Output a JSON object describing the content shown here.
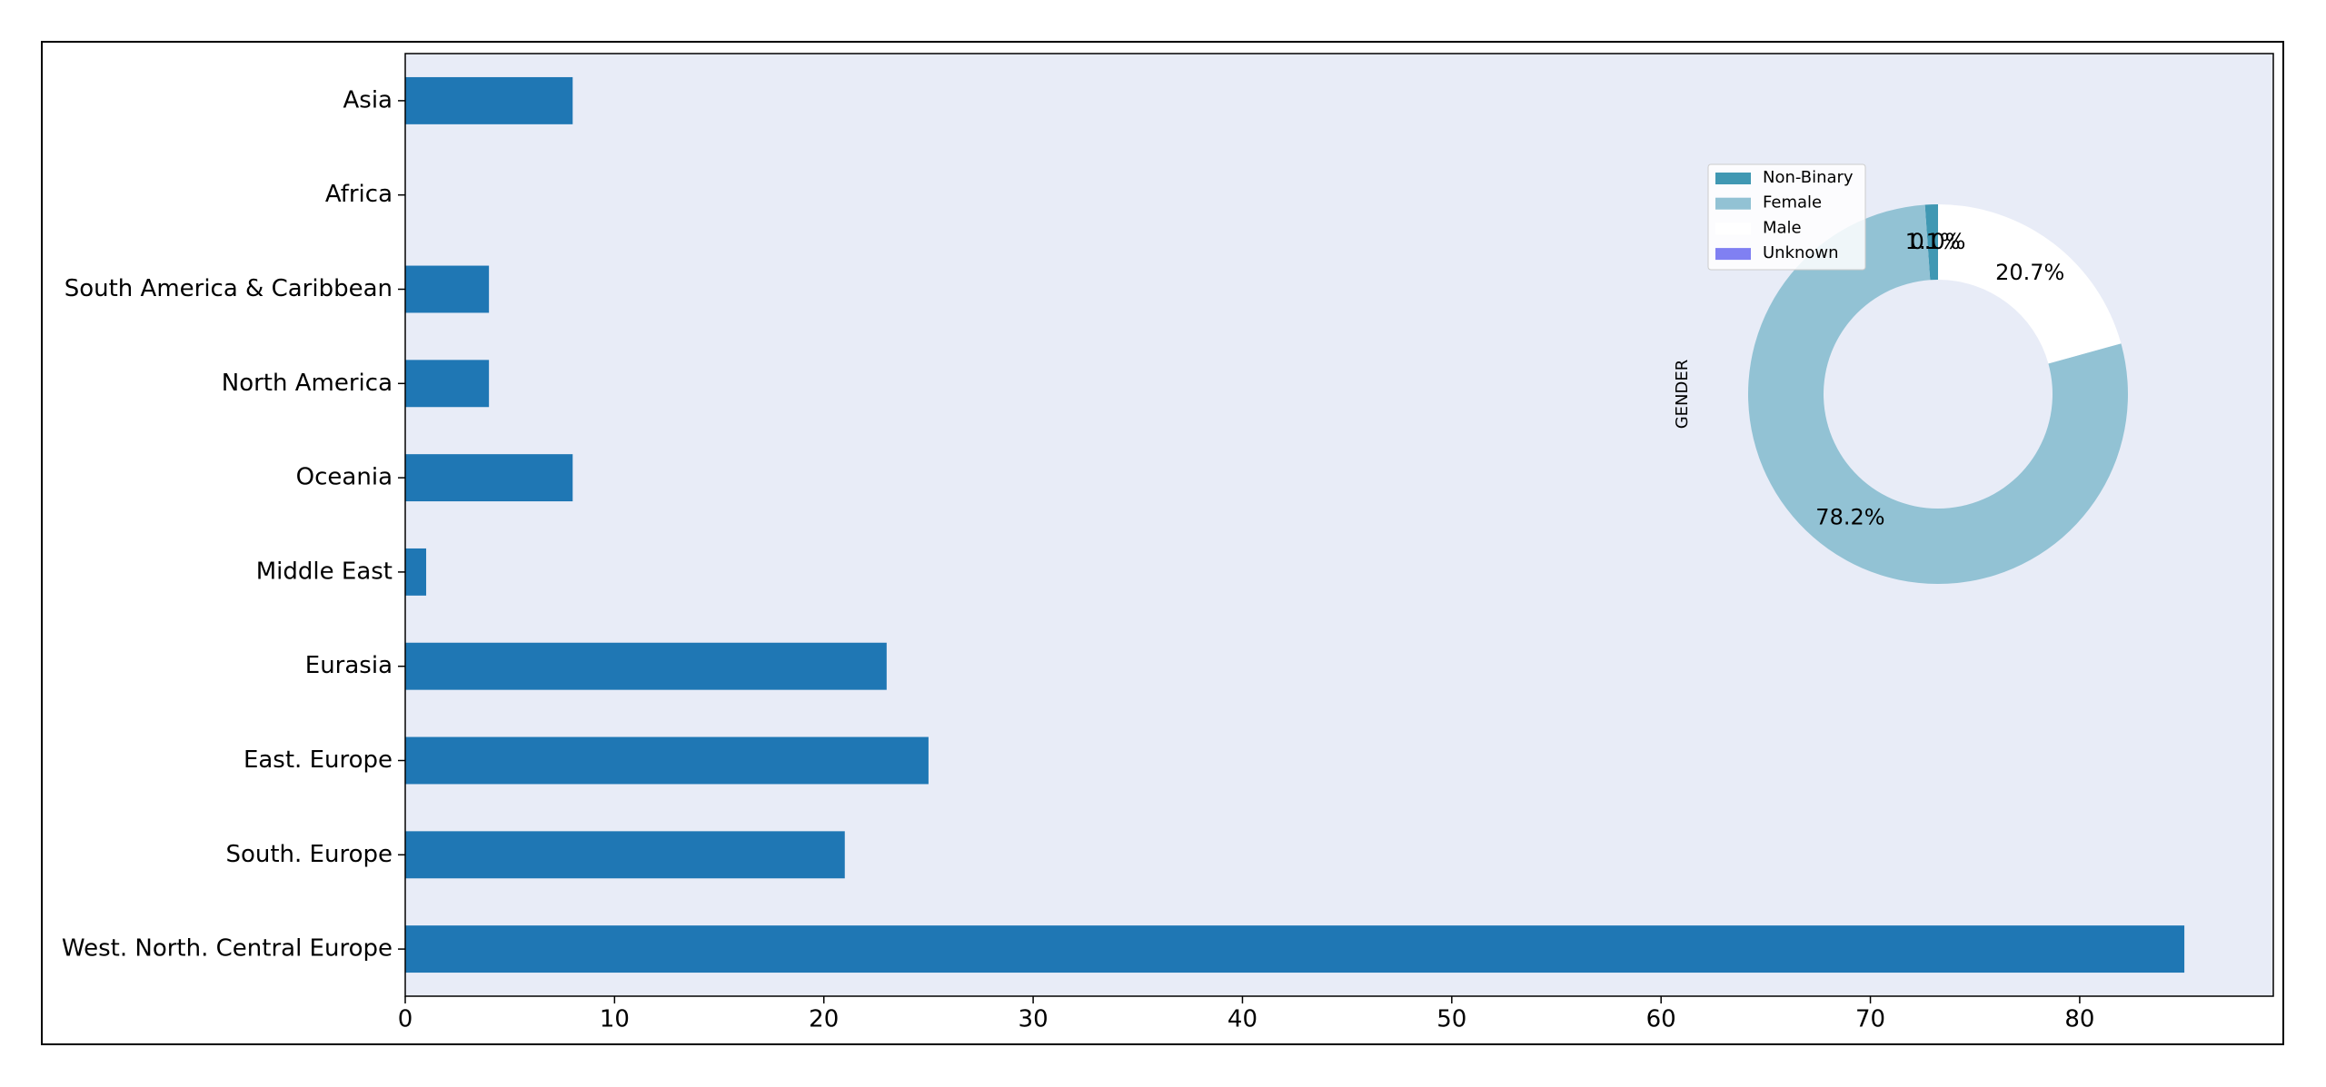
{
  "chart_data": [
    {
      "type": "barh",
      "categories": [
        "Asia",
        "Africa",
        "South America & Caribbean",
        "North America",
        "Oceania",
        "Middle East",
        "Eurasia",
        "East. Europe",
        "South. Europe",
        "West. North. Central Europe"
      ],
      "values": [
        8,
        0,
        4,
        4,
        8,
        1,
        23,
        25,
        21,
        85
      ],
      "color": "#1f77b4",
      "xlim": [
        0,
        89.25
      ],
      "xticks": [
        0,
        10,
        20,
        30,
        40,
        50,
        60,
        70,
        80
      ]
    },
    {
      "type": "pie",
      "ylabel": "GENDER",
      "series": [
        {
          "name": "Non-Binary",
          "color": "#4098b3",
          "value": 1.1,
          "value_label": "1.1%"
        },
        {
          "name": "Female",
          "color": "#92c2d4",
          "value": 78.2,
          "value_label": "78.2%"
        },
        {
          "name": "Male",
          "color": "#ffffff",
          "value": 20.7,
          "value_label": "20.7%"
        },
        {
          "name": "Unknown",
          "color": "#8080f2",
          "value": 0.0,
          "value_label": "0.0%"
        }
      ]
    }
  ]
}
